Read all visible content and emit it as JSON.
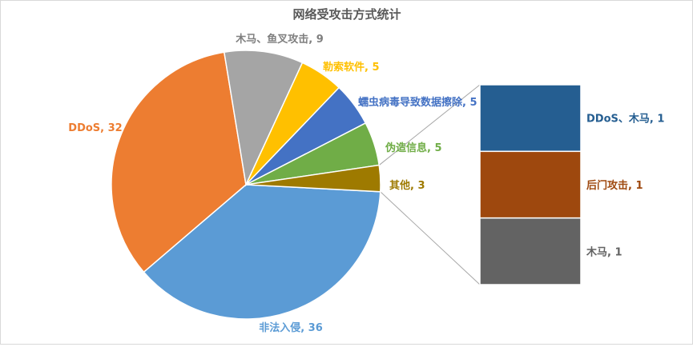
{
  "chart_data": {
    "type": "pie",
    "subtype": "bar-of-pie",
    "title": "网络受攻击方式统计",
    "slices": [
      {
        "label": "非法入侵",
        "value": 36,
        "color": "#5b9bd5",
        "text_color": "#5b9bd5",
        "display": "非法入侵, 36"
      },
      {
        "label": "DDoS",
        "value": 32,
        "color": "#ed7d31",
        "text_color": "#ed7d31",
        "display": "DDoS, 32"
      },
      {
        "label": "木马、鱼叉攻击",
        "value": 9,
        "color": "#a5a5a5",
        "text_color": "#7f7f7f",
        "display": "木马、鱼叉攻击, 9"
      },
      {
        "label": "勒索软件",
        "value": 5,
        "color": "#ffc000",
        "text_color": "#ffc000",
        "display": "勒索软件, 5"
      },
      {
        "label": "蠕虫病毒导致数据擦除",
        "value": 5,
        "color": "#4472c4",
        "text_color": "#4472c4",
        "display": "蠕虫病毒导致数据擦除, 5"
      },
      {
        "label": "伪造信息",
        "value": 5,
        "color": "#70ad47",
        "text_color": "#70ad47",
        "display": "伪造信息, 5"
      },
      {
        "label": "其他",
        "value": 3,
        "color": "#9e7a00",
        "text_color": "#9e7a00",
        "display": "其他, 3"
      }
    ],
    "secondary_bar": [
      {
        "label": "DDoS、木马",
        "value": 1,
        "color": "#255e91",
        "text_color": "#255e91",
        "display": "DDoS、木马, 1"
      },
      {
        "label": "后门攻击",
        "value": 1,
        "color": "#9e480e",
        "text_color": "#9e480e",
        "display": "后门攻击, 1"
      },
      {
        "label": "木马",
        "value": 1,
        "color": "#636363",
        "text_color": "#636363",
        "display": "木马, 1"
      }
    ]
  }
}
